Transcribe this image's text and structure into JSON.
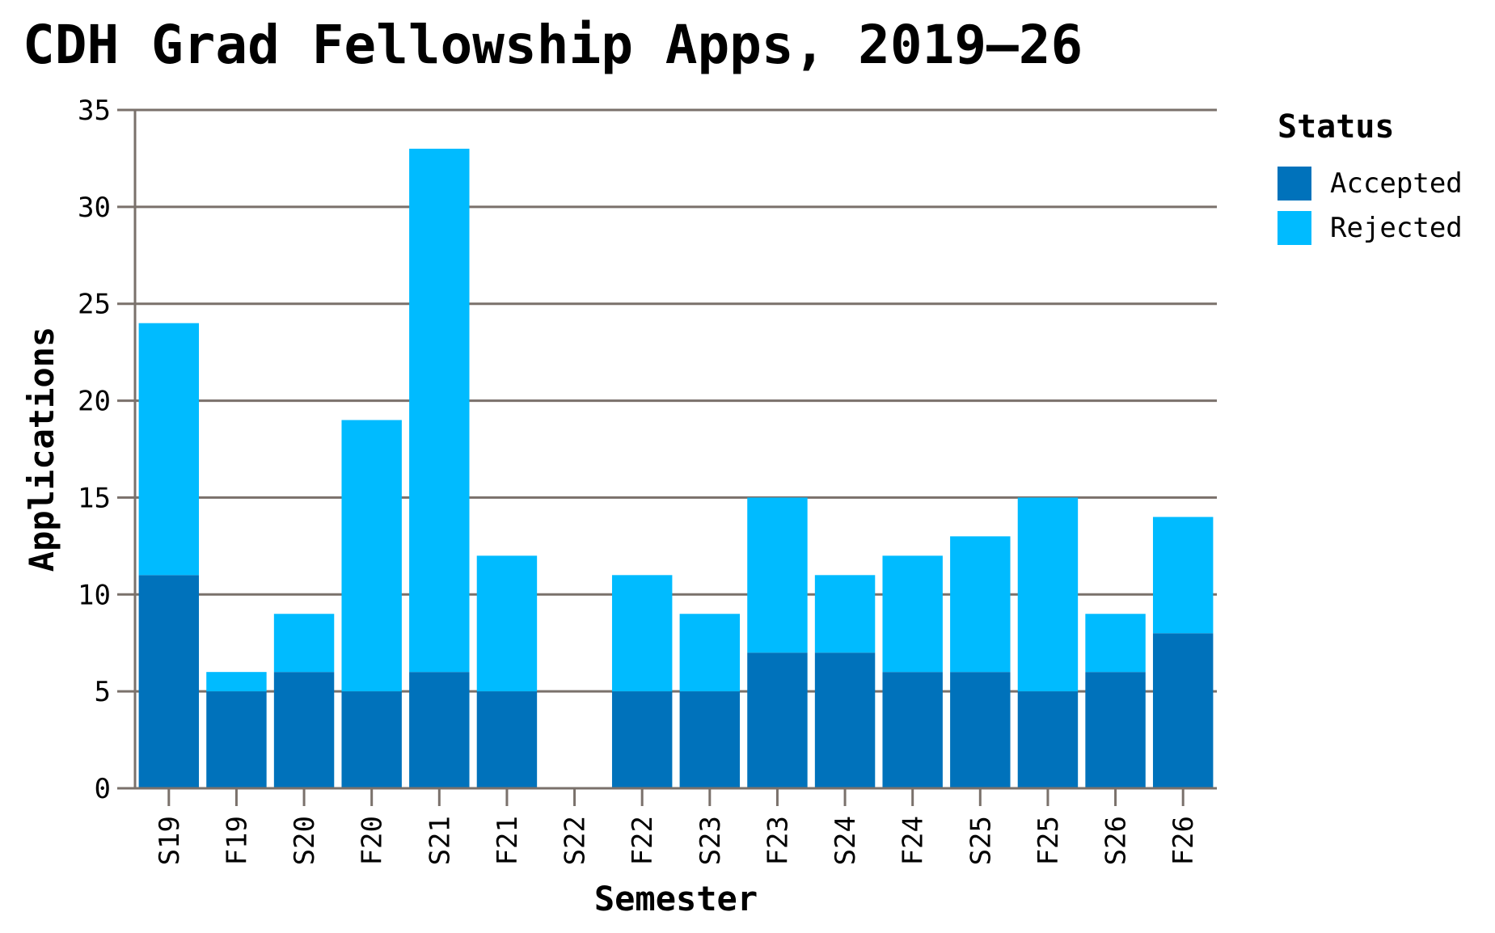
{
  "chart_data": {
    "type": "bar",
    "stacked": true,
    "title": "CDH Grad Fellowship Apps, 2019–26",
    "xlabel": "Semester",
    "ylabel": "Applications",
    "ylim": [
      0,
      35
    ],
    "yticks": [
      0,
      5,
      10,
      15,
      20,
      25,
      30,
      35
    ],
    "grid": true,
    "legend": {
      "title": "Status",
      "placement": "right"
    },
    "categories": [
      "S19",
      "F19",
      "S20",
      "F20",
      "S21",
      "F21",
      "S22",
      "F22",
      "S23",
      "F23",
      "S24",
      "F24",
      "S25",
      "F25",
      "S26",
      "F26"
    ],
    "series": [
      {
        "name": "Accepted",
        "color": "#0072bb",
        "values": [
          11,
          5,
          6,
          5,
          6,
          5,
          0,
          5,
          5,
          7,
          7,
          6,
          6,
          5,
          6,
          8
        ]
      },
      {
        "name": "Rejected",
        "color": "#00bbff",
        "values": [
          13,
          1,
          3,
          14,
          27,
          7,
          0,
          6,
          4,
          8,
          4,
          6,
          7,
          10,
          3,
          6
        ]
      }
    ]
  }
}
